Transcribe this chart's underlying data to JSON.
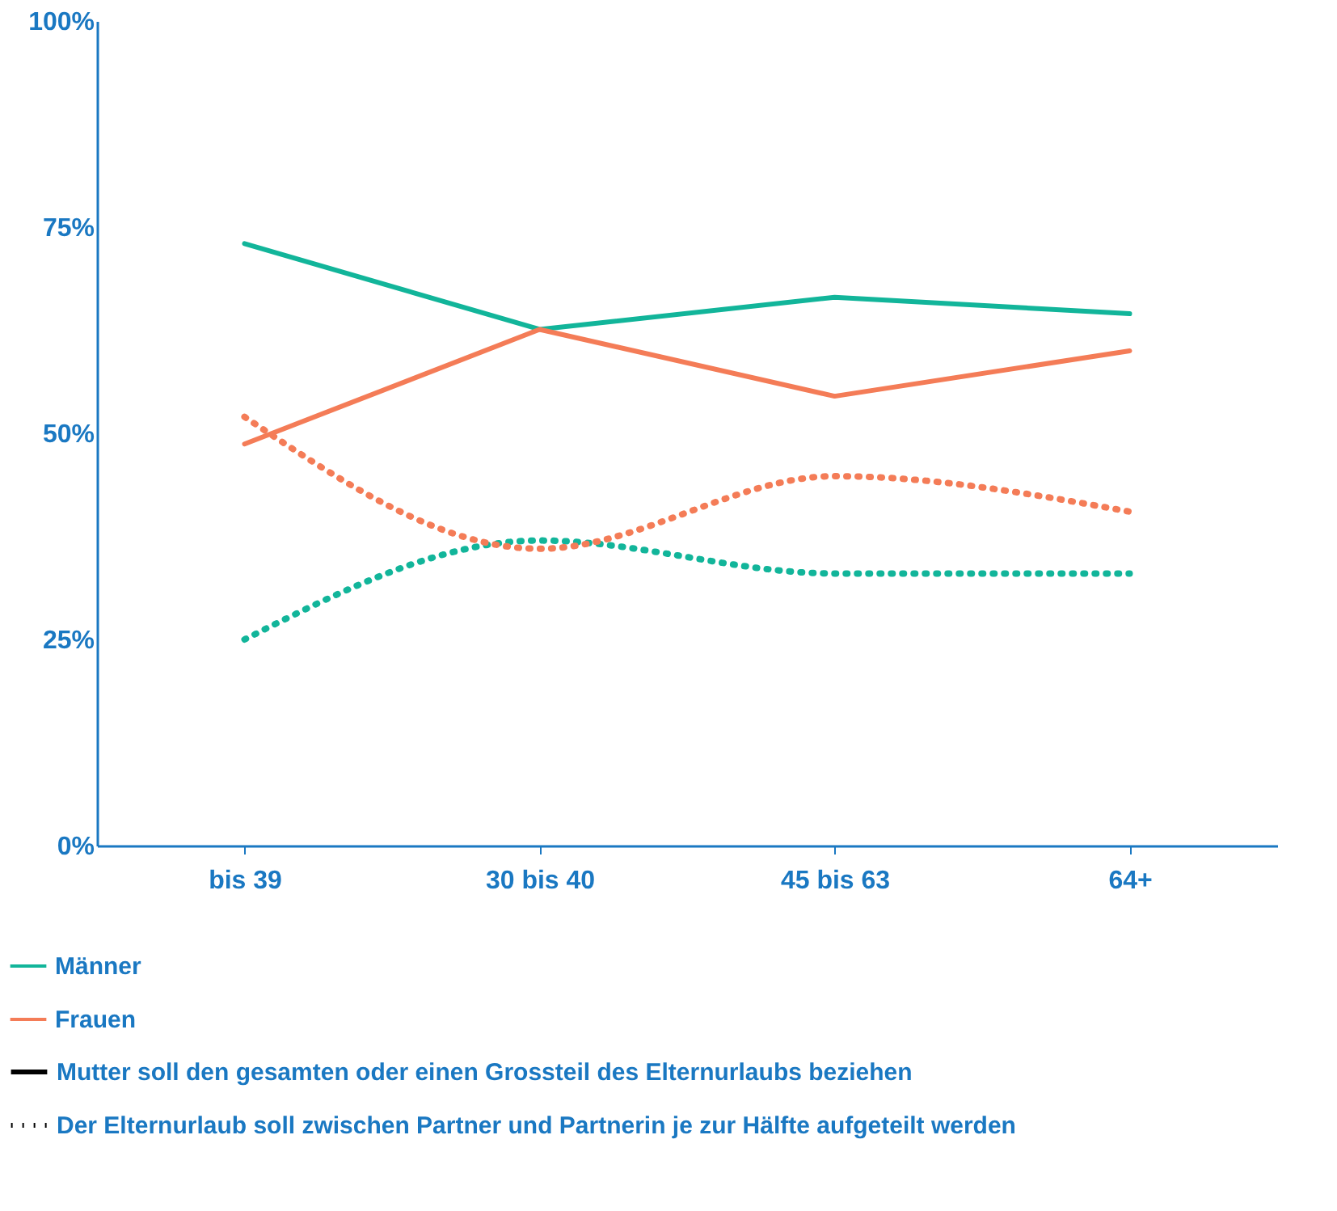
{
  "chart_data": {
    "type": "line",
    "categories": [
      "bis 39",
      "30 bis 40",
      "45 bis 63",
      "64+"
    ],
    "series": [
      {
        "name": "Männer",
        "color": "#12b59a",
        "line_style": "solid",
        "values": [
          73,
          62.6,
          66.5,
          64.5
        ]
      },
      {
        "name": "Frauen",
        "color": "#f47c57",
        "line_style": "solid",
        "values": [
          48.7,
          62.6,
          54.5,
          60
        ]
      },
      {
        "color": "#12b59a",
        "line_style": "dotted",
        "values": [
          25,
          37,
          33,
          33
        ]
      },
      {
        "color": "#f47c57",
        "line_style": "dotted",
        "values": [
          52,
          36,
          44.8,
          40.5
        ]
      }
    ],
    "ylim": [
      0,
      100
    ],
    "yticks": [
      {
        "value": 0,
        "label": "0%"
      },
      {
        "value": 25,
        "label": "25%"
      },
      {
        "value": 50,
        "label": "50%"
      },
      {
        "value": 75,
        "label": "75%"
      },
      {
        "value": 100,
        "label": "100%"
      }
    ],
    "grid": false,
    "legend": "bottom",
    "annotations": [
      "Mutter soll den gesamten oder einen Grossteil des Elternurlaubs beziehen",
      "Der Elternurlaub soll zwischen Partner und Partnerin je zur Hälfte aufgeteilt werden"
    ]
  }
}
